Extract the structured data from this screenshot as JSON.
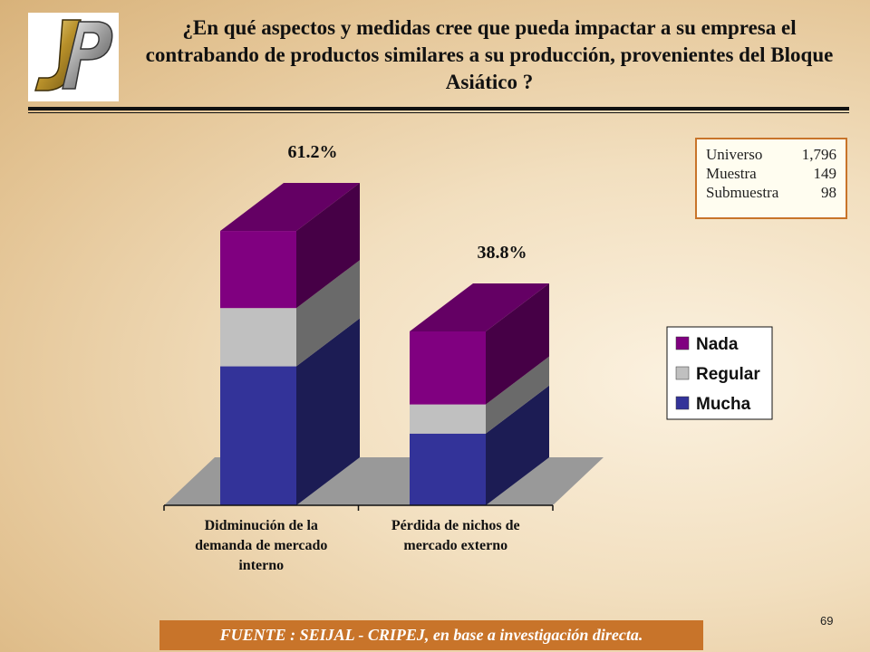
{
  "title": "¿En qué aspectos y medidas cree que pueda impactar a su empresa el contrabando de productos similares a su producción, provenientes del Bloque Asiático ?",
  "logo": {
    "text": "JP",
    "icon": "jp-logo-icon"
  },
  "info_box": {
    "rows": [
      {
        "label": "Universo",
        "value": "1,796"
      },
      {
        "label": "Muestra",
        "value": "149"
      },
      {
        "label": "Submuestra",
        "value": "98"
      }
    ]
  },
  "chart_data": {
    "type": "bar",
    "stacked": true,
    "style": "3d",
    "categories": [
      [
        "Didminución de la",
        "demanda de mercado",
        "interno"
      ],
      [
        "Pérdida de nichos de",
        "mercado externo"
      ]
    ],
    "totals": [
      61.2,
      38.8
    ],
    "total_labels": [
      "61.2%",
      "38.8%"
    ],
    "series": [
      {
        "name": "Mucha",
        "color": "#333399",
        "values": [
          31,
          16
        ]
      },
      {
        "name": "Regular",
        "color": "#c0c0c0",
        "values": [
          13,
          6.5
        ]
      },
      {
        "name": "Nada",
        "color": "#800080",
        "values": [
          17.2,
          16.3
        ]
      }
    ],
    "legend_position": "right",
    "grid": false
  },
  "footer": "FUENTE : SEIJAL - CRIPEJ, en base a investigación directa.",
  "page_number": "69"
}
